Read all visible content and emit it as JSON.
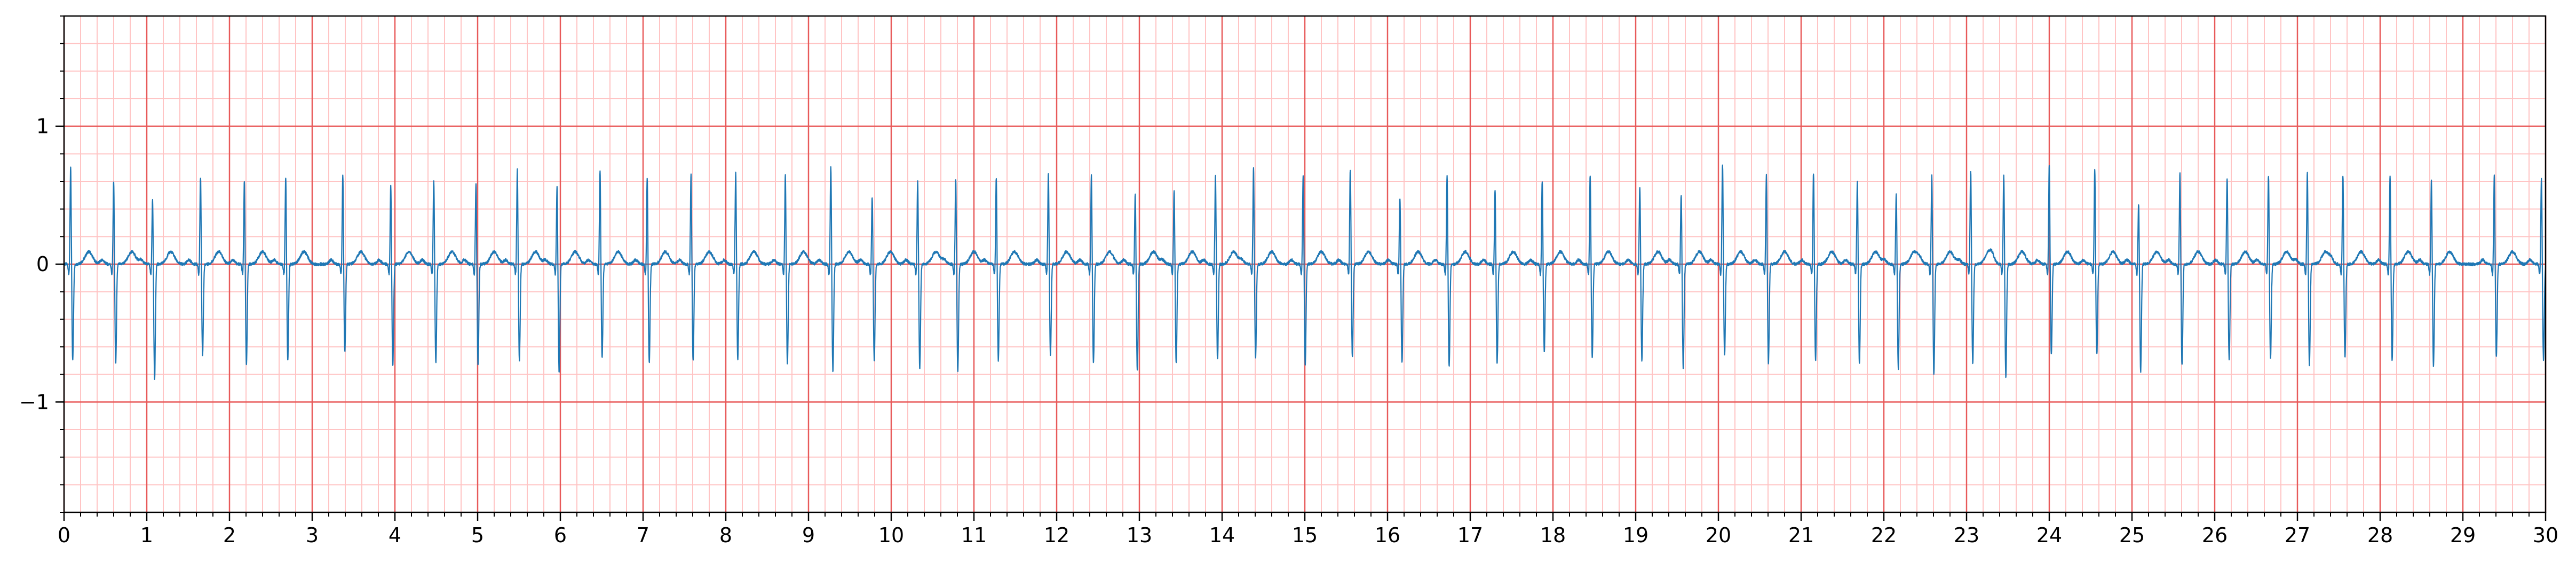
{
  "chart_data": {
    "type": "line",
    "title": "",
    "xlabel": "",
    "ylabel": "",
    "xlim": [
      0,
      30
    ],
    "ylim": [
      -1.8,
      1.8
    ],
    "x_ticks": [
      {
        "value": 0,
        "label": "0"
      },
      {
        "value": 1,
        "label": "1"
      },
      {
        "value": 2,
        "label": "2"
      },
      {
        "value": 3,
        "label": "3"
      },
      {
        "value": 4,
        "label": "4"
      },
      {
        "value": 5,
        "label": "5"
      },
      {
        "value": 6,
        "label": "6"
      },
      {
        "value": 7,
        "label": "7"
      },
      {
        "value": 8,
        "label": "8"
      },
      {
        "value": 9,
        "label": "9"
      },
      {
        "value": 10,
        "label": "10"
      },
      {
        "value": 11,
        "label": "11"
      },
      {
        "value": 12,
        "label": "12"
      },
      {
        "value": 13,
        "label": "13"
      },
      {
        "value": 14,
        "label": "14"
      },
      {
        "value": 15,
        "label": "15"
      },
      {
        "value": 16,
        "label": "16"
      },
      {
        "value": 17,
        "label": "17"
      },
      {
        "value": 18,
        "label": "18"
      },
      {
        "value": 19,
        "label": "19"
      },
      {
        "value": 20,
        "label": "20"
      },
      {
        "value": 21,
        "label": "21"
      },
      {
        "value": 22,
        "label": "22"
      },
      {
        "value": 23,
        "label": "23"
      },
      {
        "value": 24,
        "label": "24"
      },
      {
        "value": 25,
        "label": "25"
      },
      {
        "value": 26,
        "label": "26"
      },
      {
        "value": 27,
        "label": "27"
      },
      {
        "value": 28,
        "label": "28"
      },
      {
        "value": 29,
        "label": "29"
      },
      {
        "value": 30,
        "label": "30"
      }
    ],
    "y_ticks": [
      {
        "value": -1,
        "label": "−1"
      },
      {
        "value": 0,
        "label": "0"
      },
      {
        "value": 1,
        "label": "1"
      }
    ],
    "grid": {
      "major_x_step": 1,
      "major_y_step": 1,
      "minor_x_step": 0.2,
      "minor_y_step": 0.2,
      "major_color": "#e85a5a",
      "minor_color": "#ffc4c4"
    },
    "line_color": "#1f77b4",
    "axis_color": "#000000",
    "series": [
      {
        "name": "",
        "beats": [
          {
            "t": 0.08,
            "r": 0.72,
            "s": -0.7
          },
          {
            "t": 0.6,
            "r": 0.62,
            "s": -0.72
          },
          {
            "t": 1.07,
            "r": 0.48,
            "s": -0.84
          },
          {
            "t": 1.65,
            "r": 0.65,
            "s": -0.66
          },
          {
            "t": 2.18,
            "r": 0.62,
            "s": -0.74
          },
          {
            "t": 2.68,
            "r": 0.65,
            "s": -0.7
          },
          {
            "t": 3.37,
            "r": 0.66,
            "s": -0.64
          },
          {
            "t": 3.95,
            "r": 0.58,
            "s": -0.74
          },
          {
            "t": 4.47,
            "r": 0.62,
            "s": -0.72
          },
          {
            "t": 4.98,
            "r": 0.6,
            "s": -0.74
          },
          {
            "t": 5.48,
            "r": 0.7,
            "s": -0.7
          },
          {
            "t": 5.96,
            "r": 0.58,
            "s": -0.78
          },
          {
            "t": 6.48,
            "r": 0.7,
            "s": -0.68
          },
          {
            "t": 7.05,
            "r": 0.64,
            "s": -0.72
          },
          {
            "t": 7.58,
            "r": 0.68,
            "s": -0.7
          },
          {
            "t": 8.12,
            "r": 0.68,
            "s": -0.7
          },
          {
            "t": 8.72,
            "r": 0.66,
            "s": -0.72
          },
          {
            "t": 9.27,
            "r": 0.72,
            "s": -0.78
          },
          {
            "t": 9.77,
            "r": 0.5,
            "s": -0.7
          },
          {
            "t": 10.32,
            "r": 0.62,
            "s": -0.76
          },
          {
            "t": 10.78,
            "r": 0.64,
            "s": -0.78
          },
          {
            "t": 11.27,
            "r": 0.64,
            "s": -0.7
          },
          {
            "t": 11.9,
            "r": 0.68,
            "s": -0.66
          },
          {
            "t": 12.42,
            "r": 0.66,
            "s": -0.72
          },
          {
            "t": 12.95,
            "r": 0.52,
            "s": -0.78
          },
          {
            "t": 13.42,
            "r": 0.56,
            "s": -0.72
          },
          {
            "t": 13.92,
            "r": 0.66,
            "s": -0.7
          },
          {
            "t": 14.38,
            "r": 0.72,
            "s": -0.68
          },
          {
            "t": 14.98,
            "r": 0.66,
            "s": -0.74
          },
          {
            "t": 15.55,
            "r": 0.7,
            "s": -0.68
          },
          {
            "t": 16.15,
            "r": 0.5,
            "s": -0.72
          },
          {
            "t": 16.72,
            "r": 0.66,
            "s": -0.74
          },
          {
            "t": 17.3,
            "r": 0.56,
            "s": -0.72
          },
          {
            "t": 17.87,
            "r": 0.62,
            "s": -0.64
          },
          {
            "t": 18.45,
            "r": 0.66,
            "s": -0.68
          },
          {
            "t": 19.05,
            "r": 0.58,
            "s": -0.7
          },
          {
            "t": 19.55,
            "r": 0.52,
            "s": -0.76
          },
          {
            "t": 20.05,
            "r": 0.74,
            "s": -0.66
          },
          {
            "t": 20.58,
            "r": 0.66,
            "s": -0.72
          },
          {
            "t": 21.15,
            "r": 0.68,
            "s": -0.7
          },
          {
            "t": 21.68,
            "r": 0.62,
            "s": -0.72
          },
          {
            "t": 22.15,
            "r": 0.52,
            "s": -0.76
          },
          {
            "t": 22.58,
            "r": 0.66,
            "s": -0.8
          },
          {
            "t": 23.05,
            "r": 0.7,
            "s": -0.72
          },
          {
            "t": 23.45,
            "r": 0.66,
            "s": -0.82
          },
          {
            "t": 24.0,
            "r": 0.74,
            "s": -0.66
          },
          {
            "t": 24.55,
            "r": 0.7,
            "s": -0.66
          },
          {
            "t": 25.08,
            "r": 0.46,
            "s": -0.78
          },
          {
            "t": 25.58,
            "r": 0.68,
            "s": -0.74
          },
          {
            "t": 26.15,
            "r": 0.64,
            "s": -0.7
          },
          {
            "t": 26.65,
            "r": 0.66,
            "s": -0.68
          },
          {
            "t": 27.12,
            "r": 0.68,
            "s": -0.74
          },
          {
            "t": 27.55,
            "r": 0.66,
            "s": -0.68
          },
          {
            "t": 28.12,
            "r": 0.66,
            "s": -0.7
          },
          {
            "t": 28.62,
            "r": 0.62,
            "s": -0.74
          },
          {
            "t": 29.38,
            "r": 0.66,
            "s": -0.68
          },
          {
            "t": 29.95,
            "r": 0.64,
            "s": -0.7
          }
        ],
        "baseline": 0.0,
        "t_wave_amplitude": 0.09
      }
    ]
  }
}
